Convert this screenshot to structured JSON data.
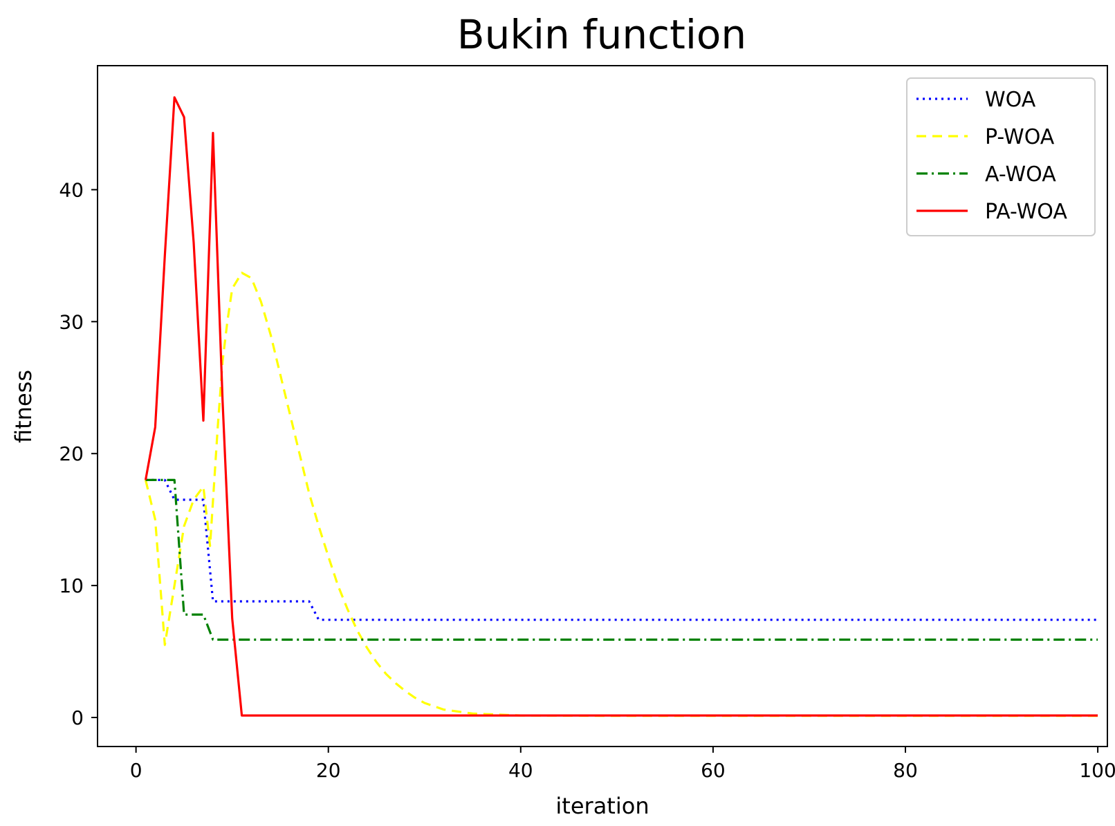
{
  "chart_data": {
    "type": "line",
    "title": "Bukin function",
    "xlabel": "iteration",
    "ylabel": "fitness",
    "xlim": [
      -4,
      101
    ],
    "ylim": [
      -2.2,
      49.4
    ],
    "xticks": [
      0,
      20,
      40,
      60,
      80,
      100
    ],
    "yticks": [
      0,
      10,
      20,
      30,
      40
    ],
    "grid": false,
    "legend_position": "top-right",
    "series": [
      {
        "name": "WOA",
        "color": "#0000ff",
        "style": "dotted",
        "points": [
          [
            1,
            18
          ],
          [
            3,
            18
          ],
          [
            4,
            16.5
          ],
          [
            7,
            16.5
          ],
          [
            8,
            8.8
          ],
          [
            18,
            8.8
          ],
          [
            19,
            7.4
          ],
          [
            100,
            7.4
          ]
        ]
      },
      {
        "name": "P-WOA",
        "color": "#ffff00",
        "style": "dashed",
        "points": [
          [
            1,
            18
          ],
          [
            2,
            15
          ],
          [
            3,
            5.5
          ],
          [
            4,
            10
          ],
          [
            5,
            14.5
          ],
          [
            6,
            16.5
          ],
          [
            7,
            17.5
          ],
          [
            7.7,
            13
          ],
          [
            8.5,
            22
          ],
          [
            9,
            27
          ],
          [
            9.5,
            30
          ],
          [
            10,
            32.5
          ],
          [
            11,
            33.7
          ],
          [
            12,
            33.3
          ],
          [
            13,
            31.5
          ],
          [
            14,
            29
          ],
          [
            15,
            26
          ],
          [
            16,
            23
          ],
          [
            17,
            20
          ],
          [
            18,
            17
          ],
          [
            19,
            14.5
          ],
          [
            20,
            12.2
          ],
          [
            21,
            10
          ],
          [
            22,
            8.2
          ],
          [
            23,
            6.6
          ],
          [
            24,
            5.3
          ],
          [
            25,
            4.2
          ],
          [
            26,
            3.3
          ],
          [
            27,
            2.6
          ],
          [
            28,
            2
          ],
          [
            29,
            1.5
          ],
          [
            30,
            1.1
          ],
          [
            32,
            0.6
          ],
          [
            35,
            0.3
          ],
          [
            40,
            0.15
          ],
          [
            50,
            0.12
          ],
          [
            100,
            0.12
          ]
        ]
      },
      {
        "name": "A-WOA",
        "color": "#008000",
        "style": "dashdot",
        "points": [
          [
            1,
            18
          ],
          [
            4,
            18
          ],
          [
            5,
            7.8
          ],
          [
            7,
            7.8
          ],
          [
            8,
            5.9
          ],
          [
            100,
            5.9
          ]
        ]
      },
      {
        "name": "PA-WOA",
        "color": "#ff0000",
        "style": "solid",
        "points": [
          [
            1,
            18
          ],
          [
            2,
            22
          ],
          [
            3,
            35
          ],
          [
            4,
            47
          ],
          [
            5,
            45.5
          ],
          [
            6,
            36
          ],
          [
            7,
            22.5
          ],
          [
            8,
            44.3
          ],
          [
            9,
            24
          ],
          [
            10,
            7.5
          ],
          [
            11,
            0.15
          ],
          [
            100,
            0.15
          ]
        ]
      }
    ]
  }
}
